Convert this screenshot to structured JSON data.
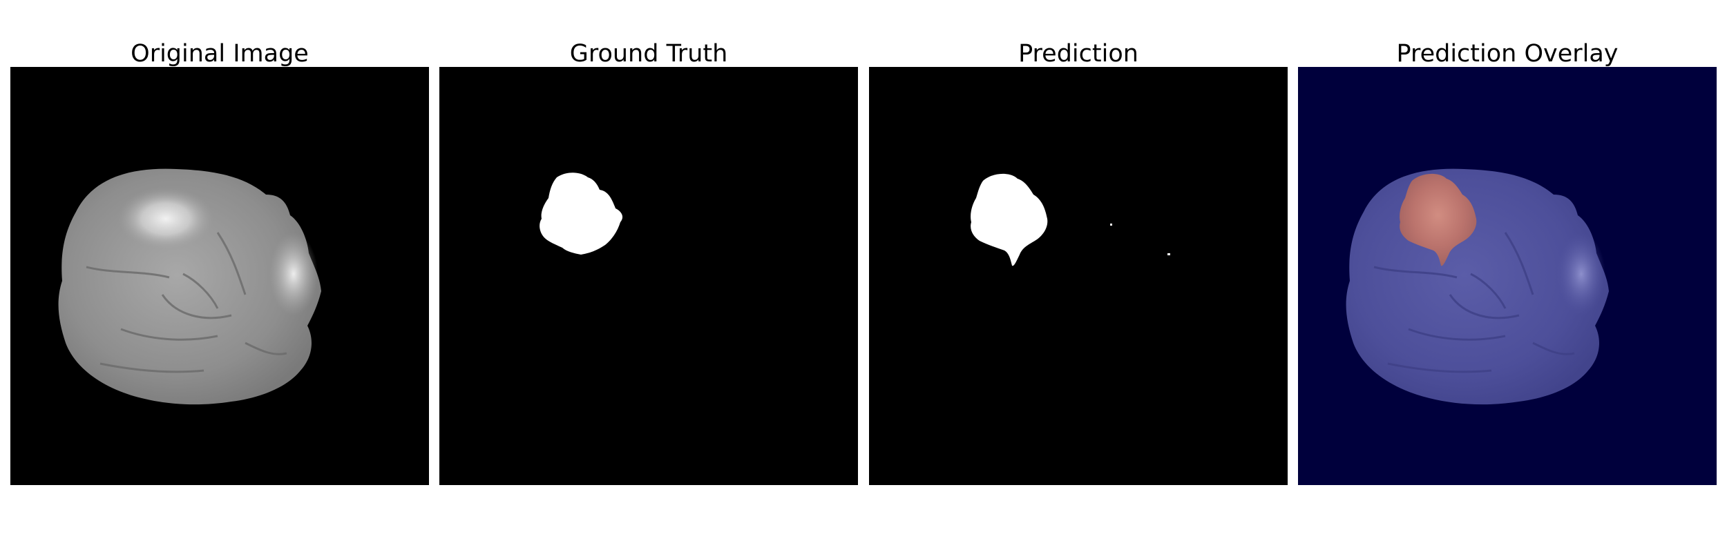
{
  "panels": [
    {
      "title": "Original Image"
    },
    {
      "title": "Ground Truth"
    },
    {
      "title": "Prediction"
    },
    {
      "title": "Prediction Overlay"
    }
  ],
  "colors": {
    "background": "#000000",
    "mask": "#ffffff",
    "overlay_background": "#00003c",
    "overlay_brain": "#4d4f9a",
    "overlay_tumor": "#c0756a"
  }
}
